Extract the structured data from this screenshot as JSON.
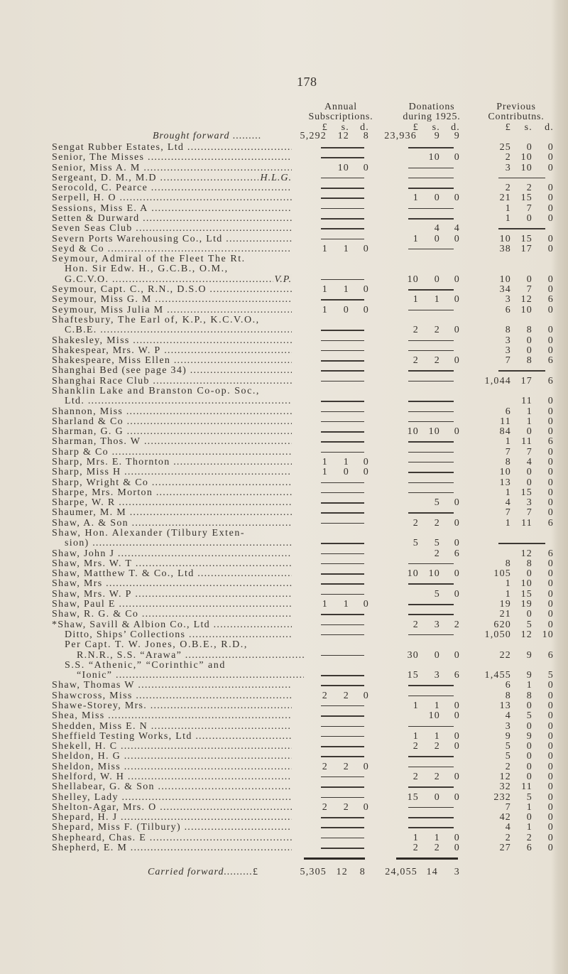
{
  "page_number": "178",
  "headers": {
    "annual": [
      "Annual",
      "Subscriptions."
    ],
    "donations": [
      "Donations",
      "during 1925."
    ],
    "previous": [
      "Previous",
      "Contributns."
    ],
    "currency": [
      "£",
      "s.",
      "d."
    ]
  },
  "brought_forward": {
    "label": "Brought forward",
    "annual": [
      "5,292",
      "12",
      "8"
    ],
    "donations": [
      "23,936",
      "9",
      "9"
    ]
  },
  "entries": [
    {
      "name": [
        "Sengat Rubber Estates, Ltd"
      ],
      "annual": null,
      "donations": null,
      "previous": [
        "25",
        "0",
        "0"
      ]
    },
    {
      "name": [
        "Senior, The Misses"
      ],
      "annual": null,
      "donations": [
        "",
        "10",
        "0"
      ],
      "previous": [
        "2",
        "10",
        "0"
      ]
    },
    {
      "name": [
        "Senior, Miss A. M"
      ],
      "annual": [
        "",
        "10",
        "0"
      ],
      "donations": null,
      "previous": [
        "3",
        "10",
        "0"
      ]
    },
    {
      "name": [
        "Sergeant, D. M., M.D"
      ],
      "suffix": "H.L.G.",
      "annual": null,
      "donations": null,
      "previous": null
    },
    {
      "name": [
        "Serocold, C. Pearce"
      ],
      "annual": null,
      "donations": null,
      "previous": [
        "2",
        "2",
        "0"
      ]
    },
    {
      "name": [
        "Serpell, H. O"
      ],
      "annual": null,
      "donations": [
        "1",
        "0",
        "0"
      ],
      "previous": [
        "21",
        "15",
        "0"
      ]
    },
    {
      "name": [
        "Sessions, Miss E. A"
      ],
      "annual": null,
      "donations": null,
      "previous": [
        "1",
        "7",
        "0"
      ]
    },
    {
      "name": [
        "Setten & Durward"
      ],
      "annual": null,
      "donations": null,
      "previous": [
        "1",
        "0",
        "0"
      ]
    },
    {
      "name": [
        "Seven Seas Club"
      ],
      "annual": null,
      "donations": [
        "",
        "4",
        "4"
      ],
      "previous": null
    },
    {
      "name": [
        "Severn Ports Warehousing Co., Ltd"
      ],
      "annual": null,
      "donations": [
        "1",
        "0",
        "0"
      ],
      "previous": [
        "10",
        "15",
        "0"
      ]
    },
    {
      "name": [
        "Seyd & Co"
      ],
      "annual": [
        "1",
        "1",
        "0"
      ],
      "donations": null,
      "previous": [
        "38",
        "17",
        "0"
      ]
    },
    {
      "name": [
        "Seymour, Admiral of the Fleet The Rt.",
        "Hon. Sir Edw. H., G.C.B., O.M.,",
        "G.C.V.O."
      ],
      "suffix": "V.P.",
      "annual": null,
      "donations": [
        "10",
        "0",
        "0"
      ],
      "previous": [
        "10",
        "0",
        "0"
      ]
    },
    {
      "name": [
        "Seymour, Capt. C., R.N., D.S.O"
      ],
      "annual": [
        "1",
        "1",
        "0"
      ],
      "donations": null,
      "previous": [
        "34",
        "7",
        "0"
      ]
    },
    {
      "name": [
        "Seymour, Miss G. M"
      ],
      "annual": null,
      "donations": [
        "1",
        "1",
        "0"
      ],
      "previous": [
        "3",
        "12",
        "6"
      ]
    },
    {
      "name": [
        "Seymour, Miss Julia M"
      ],
      "annual": [
        "1",
        "0",
        "0"
      ],
      "donations": null,
      "previous": [
        "6",
        "10",
        "0"
      ]
    },
    {
      "name": [
        "Shaftesbury, The Earl of, K.P., K.C.V.O.,",
        "C.B.E."
      ],
      "annual": null,
      "donations": [
        "2",
        "2",
        "0"
      ],
      "previous": [
        "8",
        "8",
        "0"
      ]
    },
    {
      "name": [
        "Shakesley, Miss"
      ],
      "annual": null,
      "donations": null,
      "previous": [
        "3",
        "0",
        "0"
      ]
    },
    {
      "name": [
        "Shakespear, Mrs. W. P"
      ],
      "annual": null,
      "donations": null,
      "previous": [
        "3",
        "0",
        "0"
      ]
    },
    {
      "name": [
        "Shakespeare, Miss Ellen"
      ],
      "annual": null,
      "donations": [
        "2",
        "2",
        "0"
      ],
      "previous": [
        "7",
        "8",
        "6"
      ]
    },
    {
      "name": [
        "Shanghai Bed (see page 34)"
      ],
      "annual": null,
      "donations": null,
      "previous": null
    },
    {
      "name": [
        "Shanghai Race Club"
      ],
      "annual": null,
      "donations": null,
      "previous": [
        "1,044",
        "17",
        "6"
      ]
    },
    {
      "name": [
        "Shanklin Lake and Branston Co-op. Soc.,",
        "Ltd."
      ],
      "annual": null,
      "donations": null,
      "previous": [
        "",
        "11",
        "0"
      ]
    },
    {
      "name": [
        "Shannon, Miss"
      ],
      "annual": null,
      "donations": null,
      "previous": [
        "6",
        "1",
        "0"
      ]
    },
    {
      "name": [
        "Sharland & Co"
      ],
      "annual": null,
      "donations": null,
      "previous": [
        "11",
        "1",
        "0"
      ]
    },
    {
      "name": [
        "Sharman, G. G"
      ],
      "annual": null,
      "donations": [
        "10",
        "10",
        "0"
      ],
      "previous": [
        "84",
        "0",
        "0"
      ]
    },
    {
      "name": [
        "Sharman, Thos. W"
      ],
      "annual": null,
      "donations": null,
      "previous": [
        "1",
        "11",
        "6"
      ]
    },
    {
      "name": [
        "Sharp & Co"
      ],
      "annual": null,
      "donations": null,
      "previous": [
        "7",
        "7",
        "0"
      ]
    },
    {
      "name": [
        "Sharp, Mrs. E. Thornton"
      ],
      "annual": [
        "1",
        "1",
        "0"
      ],
      "donations": null,
      "previous": [
        "8",
        "4",
        "0"
      ]
    },
    {
      "name": [
        "Sharp, Miss H"
      ],
      "annual": [
        "1",
        "0",
        "0"
      ],
      "donations": null,
      "previous": [
        "10",
        "0",
        "0"
      ]
    },
    {
      "name": [
        "Sharp, Wright & Co"
      ],
      "annual": null,
      "donations": null,
      "previous": [
        "13",
        "0",
        "0"
      ]
    },
    {
      "name": [
        "Sharpe, Mrs. Morton"
      ],
      "annual": null,
      "donations": null,
      "previous": [
        "1",
        "15",
        "0"
      ]
    },
    {
      "name": [
        "Sharpe, W. R"
      ],
      "annual": null,
      "donations": [
        "",
        "5",
        "0"
      ],
      "previous": [
        "4",
        "3",
        "0"
      ]
    },
    {
      "name": [
        "Shaumer, M. M"
      ],
      "annual": null,
      "donations": null,
      "previous": [
        "7",
        "7",
        "0"
      ]
    },
    {
      "name": [
        "Shaw, A. & Son"
      ],
      "annual": null,
      "donations": [
        "2",
        "2",
        "0"
      ],
      "previous": [
        "1",
        "11",
        "6"
      ]
    },
    {
      "name": [
        "Shaw, Hon. Alexander (Tilbury Exten-",
        "sion)"
      ],
      "annual": null,
      "donations": [
        "5",
        "5",
        "0"
      ],
      "previous": null
    },
    {
      "name": [
        "Shaw, John J"
      ],
      "annual": null,
      "donations": [
        "",
        "2",
        "6"
      ],
      "previous": [
        "",
        "12",
        "6"
      ]
    },
    {
      "name": [
        "Shaw, Mrs. W. T"
      ],
      "annual": null,
      "donations": null,
      "previous": [
        "8",
        "8",
        "0"
      ]
    },
    {
      "name": [
        "Shaw, Matthew T. & Co., Ltd"
      ],
      "annual": null,
      "donations": [
        "10",
        "10",
        "0"
      ],
      "previous": [
        "105",
        "0",
        "0"
      ]
    },
    {
      "name": [
        "Shaw, Mrs"
      ],
      "annual": null,
      "donations": null,
      "previous": [
        "1",
        "10",
        "0"
      ]
    },
    {
      "name": [
        "Shaw, Mrs. W. P"
      ],
      "annual": null,
      "donations": [
        "",
        "5",
        "0"
      ],
      "previous": [
        "1",
        "15",
        "0"
      ]
    },
    {
      "name": [
        "Shaw, Paul E"
      ],
      "annual": [
        "1",
        "1",
        "0"
      ],
      "donations": null,
      "previous": [
        "19",
        "19",
        "0"
      ]
    },
    {
      "name": [
        "Shaw, R. G. & Co"
      ],
      "annual": null,
      "donations": null,
      "previous": [
        "21",
        "0",
        "0"
      ]
    },
    {
      "name": [
        "*Shaw, Savill & Albion Co., Ltd"
      ],
      "annual": null,
      "donations": [
        "2",
        "3",
        "2"
      ],
      "previous": [
        "620",
        "5",
        "0"
      ]
    },
    {
      "name": [
        "Ditto, Ships’ Collections"
      ],
      "indent": true,
      "annual": null,
      "donations": null,
      "previous": [
        "1,050",
        "12",
        "10"
      ]
    },
    {
      "name": [
        "Per Capt. T. W. Jones, O.B.E., R.D.,",
        "R.N.R., S.S. “Arawa”"
      ],
      "indent": true,
      "annual": null,
      "donations": [
        "30",
        "0",
        "0"
      ],
      "previous": [
        "22",
        "9",
        "6"
      ]
    },
    {
      "name": [
        "S.S. “Athenic,” “Corinthic” and",
        "“Ionic”"
      ],
      "indent": true,
      "annual": null,
      "donations": [
        "15",
        "3",
        "6"
      ],
      "previous": [
        "1,455",
        "9",
        "5"
      ]
    },
    {
      "name": [
        "Shaw, Thomas W"
      ],
      "annual": null,
      "donations": null,
      "previous": [
        "6",
        "1",
        "0"
      ]
    },
    {
      "name": [
        "Shawcross, Miss"
      ],
      "annual": [
        "2",
        "2",
        "0"
      ],
      "donations": null,
      "previous": [
        "8",
        "8",
        "0"
      ]
    },
    {
      "name": [
        "Shawe-Storey, Mrs."
      ],
      "annual": null,
      "donations": [
        "1",
        "1",
        "0"
      ],
      "previous": [
        "13",
        "0",
        "0"
      ]
    },
    {
      "name": [
        "Shea, Miss"
      ],
      "annual": null,
      "donations": [
        "",
        "10",
        "0"
      ],
      "previous": [
        "4",
        "5",
        "0"
      ]
    },
    {
      "name": [
        "Shedden, Miss E. N"
      ],
      "annual": null,
      "donations": null,
      "previous": [
        "3",
        "0",
        "0"
      ]
    },
    {
      "name": [
        "Sheffield Testing Works, Ltd"
      ],
      "annual": null,
      "donations": [
        "1",
        "1",
        "0"
      ],
      "previous": [
        "9",
        "9",
        "0"
      ]
    },
    {
      "name": [
        "Shekell, H. C"
      ],
      "annual": null,
      "donations": [
        "2",
        "2",
        "0"
      ],
      "previous": [
        "5",
        "0",
        "0"
      ]
    },
    {
      "name": [
        "Sheldon, H. G"
      ],
      "annual": null,
      "donations": null,
      "previous": [
        "5",
        "0",
        "0"
      ]
    },
    {
      "name": [
        "Sheldon, Miss"
      ],
      "annual": [
        "2",
        "2",
        "0"
      ],
      "donations": null,
      "previous": [
        "2",
        "0",
        "0"
      ]
    },
    {
      "name": [
        "Shelford, W. H"
      ],
      "annual": null,
      "donations": [
        "2",
        "2",
        "0"
      ],
      "previous": [
        "12",
        "0",
        "0"
      ]
    },
    {
      "name": [
        "Shellabear, G. & Son"
      ],
      "annual": null,
      "donations": null,
      "previous": [
        "32",
        "11",
        "0"
      ]
    },
    {
      "name": [
        "Shelley, Lady"
      ],
      "annual": null,
      "donations": [
        "15",
        "0",
        "0"
      ],
      "previous": [
        "232",
        "5",
        "0"
      ]
    },
    {
      "name": [
        "Shelton-Agar, Mrs. O"
      ],
      "annual": [
        "2",
        "2",
        "0"
      ],
      "donations": null,
      "previous": [
        "7",
        "1",
        "0"
      ]
    },
    {
      "name": [
        "Shepard, H. J"
      ],
      "annual": null,
      "donations": null,
      "previous": [
        "42",
        "0",
        "0"
      ]
    },
    {
      "name": [
        "Shepard, Miss F. (Tilbury)"
      ],
      "annual": null,
      "donations": null,
      "previous": [
        "4",
        "1",
        "0"
      ]
    },
    {
      "name": [
        "Shepheard, Chas. E"
      ],
      "annual": null,
      "donations": [
        "1",
        "1",
        "0"
      ],
      "previous": [
        "2",
        "2",
        "0"
      ]
    },
    {
      "name": [
        "Shepherd, E. M"
      ],
      "annual": null,
      "donations": [
        "2",
        "2",
        "0"
      ],
      "previous": [
        "27",
        "6",
        "0"
      ]
    }
  ],
  "carried_forward": {
    "label": "Carried forward",
    "currency": "£",
    "annual": [
      "5,305",
      "12",
      "8"
    ],
    "donations": [
      "24,055",
      "14",
      "3"
    ]
  }
}
